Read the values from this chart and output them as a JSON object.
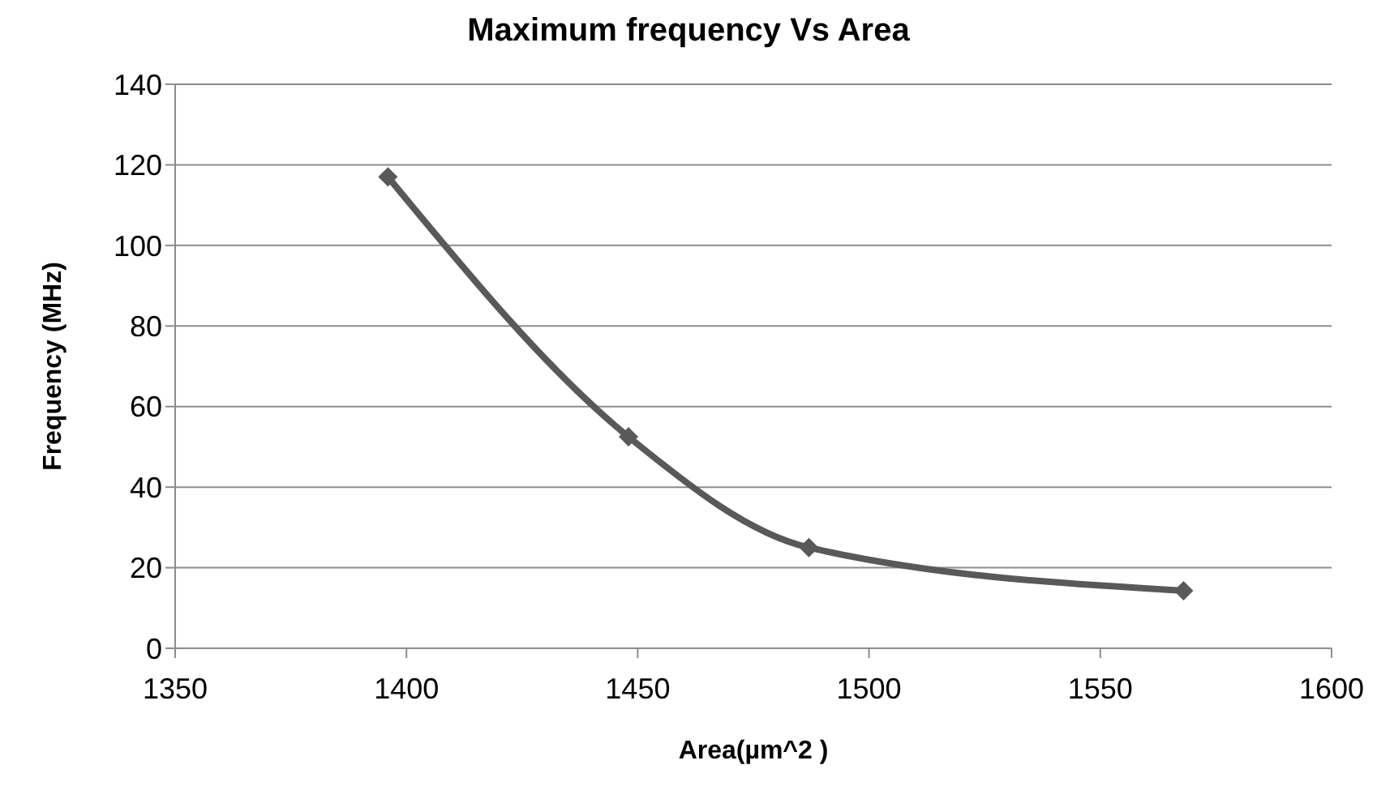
{
  "chart_data": {
    "type": "line",
    "title": "Maximum frequency Vs Area",
    "xlabel": "Area(µm^2 )",
    "ylabel": "Frequency (MHz)",
    "x": [
      1396,
      1448,
      1487,
      1568
    ],
    "series": [
      {
        "color": "#595959",
        "values": [
          117,
          52.5,
          25,
          14.3
        ]
      }
    ],
    "xlim": [
      1350,
      1600
    ],
    "xticks": [
      1350,
      1400,
      1450,
      1500,
      1550,
      1600
    ],
    "ylim": [
      0,
      140
    ],
    "yticks": [
      0,
      20,
      40,
      60,
      80,
      100,
      120,
      140
    ],
    "grid": "y",
    "legend": false,
    "marker": "diamond",
    "line_style": "solid"
  }
}
